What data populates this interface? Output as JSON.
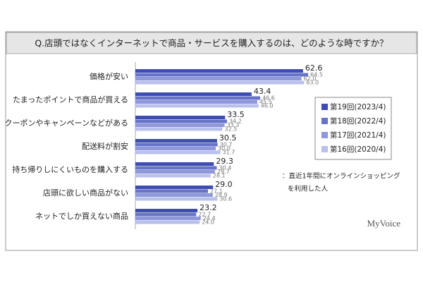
{
  "chart_data": {
    "type": "bar",
    "orientation": "horizontal",
    "title": "Q.店頭ではなくインターネットで商品・サービスを購入するのは、どのような時ですか？",
    "categories": [
      "価格が安い",
      "たまったポイントで商品が買える",
      "クーポンやキャンペーンなどがある",
      "配送料が割安",
      "持ち帰りしにくいものを購入する",
      "店頭に欲しい商品がない",
      "ネットでしか買えない商品"
    ],
    "series": [
      {
        "name": "第19回(2023/4)",
        "color": "#3f4db3",
        "values": [
          62.6,
          43.4,
          33.5,
          30.5,
          29.3,
          29.0,
          23.2
        ]
      },
      {
        "name": "第18回(2022/4)",
        "color": "#6673c9",
        "values": [
          64.5,
          46.6,
          34.2,
          30.7,
          30.4,
          27.1,
          22.7
        ]
      },
      {
        "name": "第17回(2021/4)",
        "color": "#8e98da",
        "values": [
          62.0,
          45.5,
          33.3,
          30.0,
          29.7,
          28.9,
          24.4
        ]
      },
      {
        "name": "第16回(2020/4)",
        "color": "#b9c0ec",
        "values": [
          63.0,
          46.0,
          32.5,
          31.7,
          28.1,
          30.6,
          24.0
        ]
      }
    ],
    "value_labels": [
      [
        "62.6",
        "43.4",
        "33.5",
        "30.5",
        "29.3",
        "29.0",
        "23.2"
      ],
      [
        "64.5",
        "46.6",
        "34.2",
        "30.7",
        "30.4",
        "27.1",
        "22.7"
      ],
      [
        "62.0",
        "45.5",
        "33.3",
        "30.0",
        "29.7",
        "28.9",
        "24.4"
      ],
      [
        "63.0",
        "46.0",
        "32.5",
        "31.7",
        "28.1",
        "30.6",
        "24.0"
      ]
    ],
    "note": [
      "：直近1年間にオンラインショッピング",
      "を利用した人"
    ],
    "brand": "MyVoice"
  }
}
